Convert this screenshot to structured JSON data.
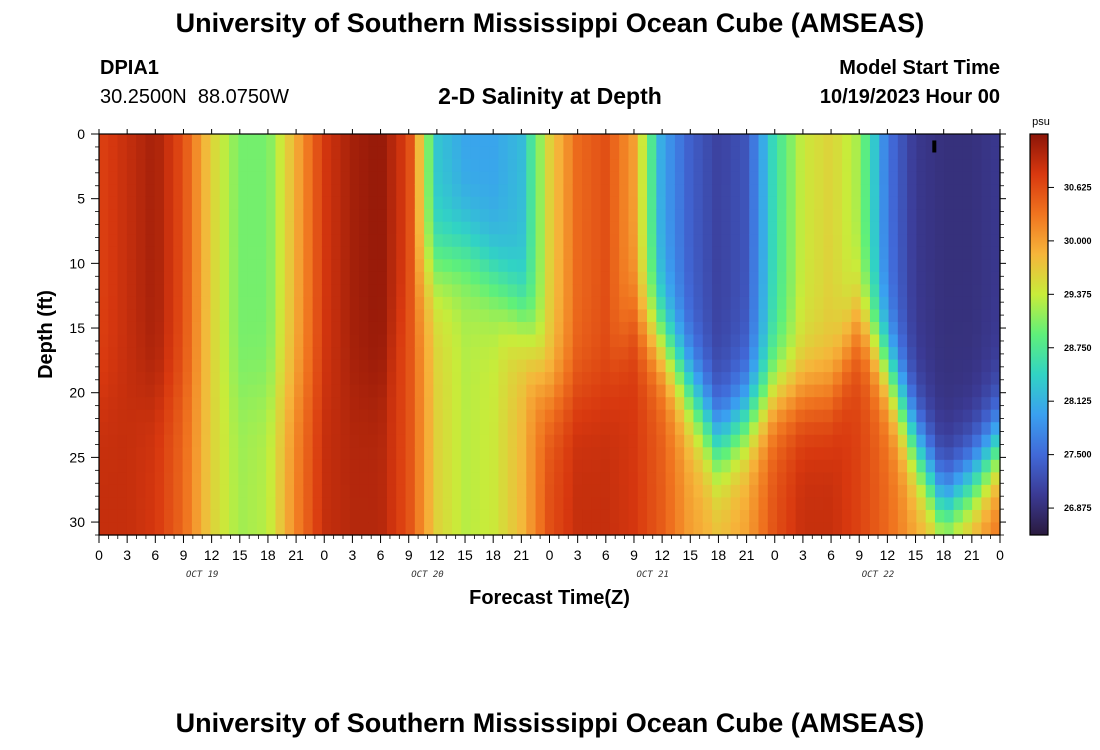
{
  "header": {
    "title": "University of Southern Mississippi Ocean Cube (AMSEAS)",
    "station": "DPIA1",
    "coords": "30.2500N  88.0750W",
    "subtitle": "2-D Salinity at Depth",
    "start_label": "Model Start Time",
    "start_value": "10/19/2023 Hour 00"
  },
  "footer": {
    "title": "University of Southern Mississippi Ocean Cube (AMSEAS)"
  },
  "colors": {
    "scale": [
      "#2a1a3e",
      "#3b3a94",
      "#4169d8",
      "#3aa0f0",
      "#31d3c4",
      "#5ff07a",
      "#c8ec3a",
      "#f6b53a",
      "#f0741f",
      "#d8380f",
      "#8c1508"
    ]
  },
  "chart_data": {
    "type": "heatmap",
    "title": "2-D Salinity at Depth",
    "xlabel": "Forecast Time(Z)",
    "ylabel": "Depth (ft)",
    "x_range": [
      0,
      96
    ],
    "y_range": [
      0,
      31
    ],
    "x_ticks": [
      "0",
      "3",
      "6",
      "9",
      "12",
      "15",
      "18",
      "21",
      "0",
      "3",
      "6",
      "9",
      "12",
      "15",
      "18",
      "21",
      "0",
      "3",
      "6",
      "9",
      "12",
      "15",
      "18",
      "21",
      "0",
      "3",
      "6",
      "9",
      "12",
      "15",
      "18",
      "21",
      "0"
    ],
    "x_tick_hours": [
      0,
      3,
      6,
      9,
      12,
      15,
      18,
      21,
      24,
      27,
      30,
      33,
      36,
      39,
      42,
      45,
      48,
      51,
      54,
      57,
      60,
      63,
      66,
      69,
      72,
      75,
      78,
      81,
      84,
      87,
      90,
      93,
      96
    ],
    "y_ticks": [
      "0",
      "5",
      "10",
      "15",
      "20",
      "25",
      "30"
    ],
    "y_tick_values": [
      0,
      5,
      10,
      15,
      20,
      25,
      30
    ],
    "date_labels": [
      {
        "label": "OCT 19",
        "hour": 11
      },
      {
        "label": "OCT 20",
        "hour": 35
      },
      {
        "label": "OCT 21",
        "hour": 59
      },
      {
        "label": "OCT 22",
        "hour": 83
      }
    ],
    "colorbar": {
      "unit": "psu",
      "ticks": [
        "30.625",
        "30.000",
        "29.375",
        "28.750",
        "28.125",
        "27.500",
        "26.875"
      ],
      "tick_values": [
        30.625,
        30.0,
        29.375,
        28.75,
        28.125,
        27.5,
        26.875
      ],
      "range": [
        26.56,
        31.25
      ]
    },
    "grid": false,
    "time_profiles": {
      "hours": [
        0,
        3,
        6,
        9,
        12,
        15,
        18,
        21,
        24,
        27,
        30,
        33,
        36,
        39,
        42,
        45,
        48,
        51,
        54,
        57,
        60,
        63,
        66,
        69,
        72,
        75,
        78,
        81,
        84,
        87,
        90,
        93,
        96
      ],
      "surface_psu": [
        30.7,
        30.9,
        31.1,
        30.6,
        29.6,
        29.0,
        29.0,
        29.9,
        30.8,
        31.1,
        31.2,
        30.7,
        28.3,
        28.0,
        28.0,
        28.2,
        29.6,
        30.4,
        30.6,
        30.0,
        28.0,
        27.4,
        27.1,
        27.3,
        28.6,
        29.4,
        29.6,
        29.2,
        27.6,
        27.0,
        26.9,
        26.9,
        27.0
      ],
      "bottom_psu": [
        30.9,
        30.9,
        30.8,
        30.4,
        29.6,
        29.2,
        29.3,
        30.2,
        30.9,
        31.0,
        31.0,
        30.6,
        29.6,
        29.3,
        29.4,
        29.8,
        30.6,
        30.9,
        30.9,
        30.8,
        30.5,
        30.0,
        29.8,
        30.0,
        30.6,
        30.9,
        30.9,
        30.7,
        30.4,
        30.0,
        29.9,
        30.1,
        30.4
      ],
      "transition_depth_ft": [
        20,
        20,
        20,
        20,
        20,
        20,
        20,
        20,
        20,
        20,
        20,
        12,
        10,
        9,
        11,
        14,
        20,
        20,
        20,
        14,
        16,
        20,
        24,
        22,
        20,
        20,
        20,
        14,
        18,
        24,
        29,
        27,
        24
      ]
    }
  }
}
